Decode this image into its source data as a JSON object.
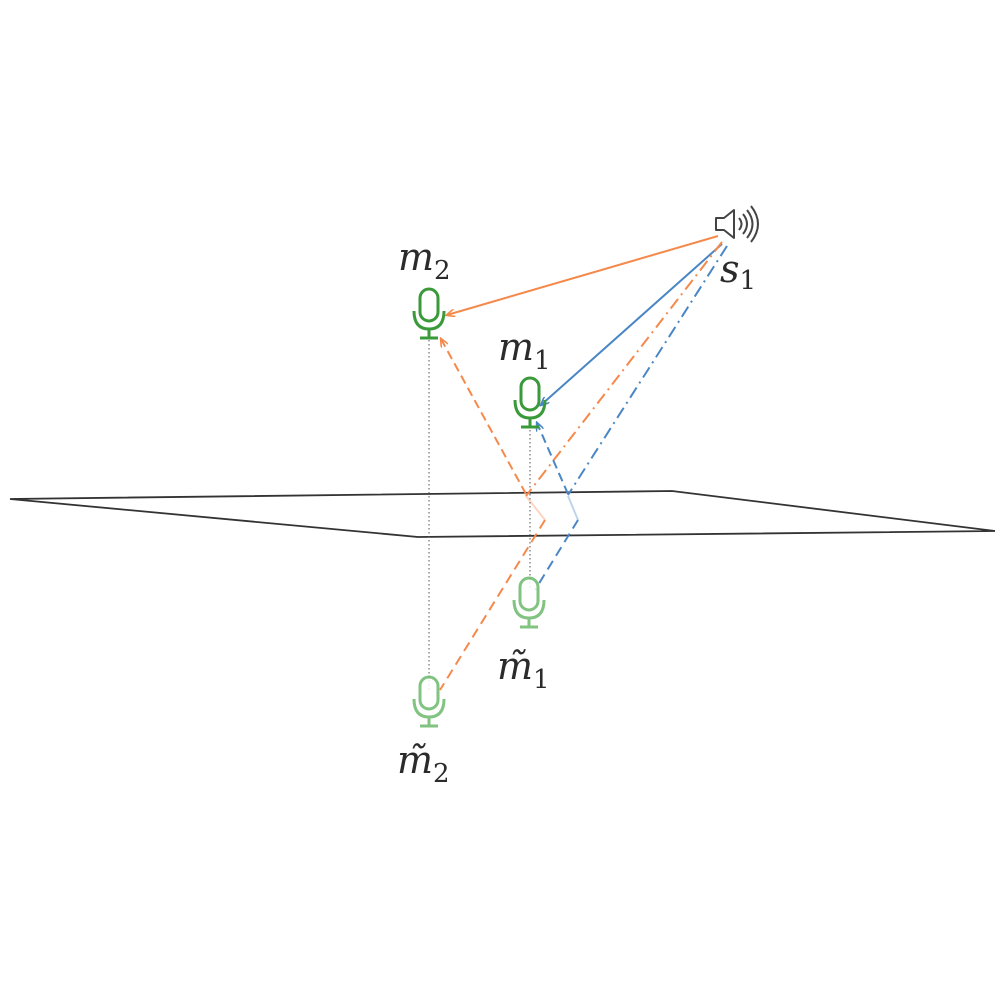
{
  "labels": {
    "source": {
      "base": "s",
      "sub": "1"
    },
    "mic1": {
      "base": "m",
      "sub": "1"
    },
    "mic2": {
      "base": "m",
      "sub": "2"
    },
    "image_mic1": {
      "base": "m̃",
      "sub": "1"
    },
    "image_mic2": {
      "base": "m̃",
      "sub": "2"
    }
  },
  "icons": {
    "source": "speaker-icon",
    "mic": "microphone-icon",
    "image_mic": "microphone-icon"
  },
  "colors": {
    "orange": "#f5894b",
    "blue": "#4a86c5",
    "mic_green": "#3a9a3a",
    "image_mic_green": "#6cb96c",
    "plane": "#333333",
    "speaker": "#444444"
  }
}
